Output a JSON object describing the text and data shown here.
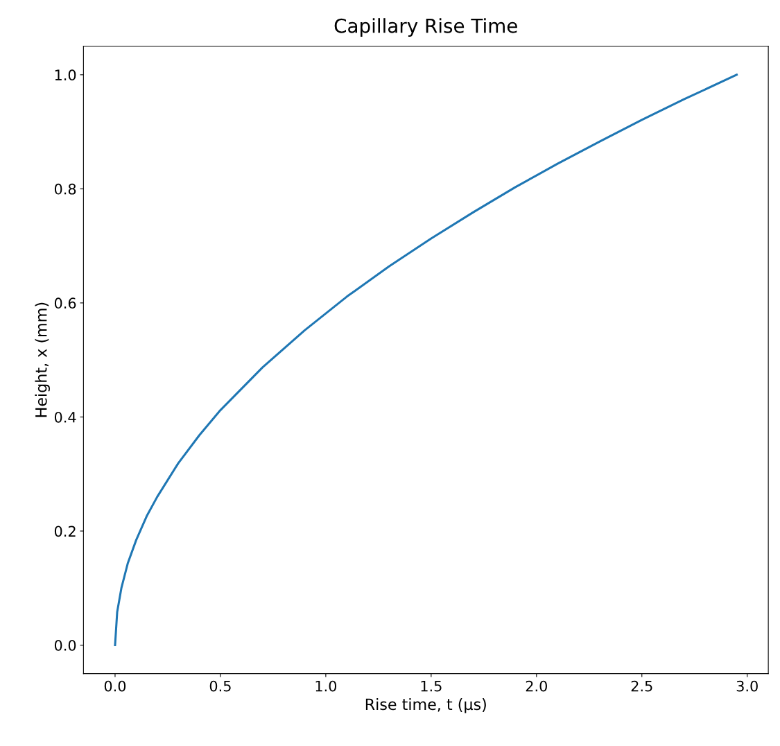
{
  "chart_data": {
    "type": "line",
    "title": "Capillary Rise Time",
    "xlabel": "Rise time, t (µs)",
    "ylabel": "Height, x (mm)",
    "x": [
      0,
      0.01,
      0.03,
      0.06,
      0.1,
      0.15,
      0.2,
      0.3,
      0.4,
      0.5,
      0.7,
      0.9,
      1.1,
      1.3,
      1.5,
      1.7,
      1.9,
      2.1,
      2.3,
      2.5,
      2.7,
      2.95
    ],
    "series": [
      {
        "color": "#1f77b4",
        "values": [
          0,
          0.058,
          0.1,
          0.143,
          0.184,
          0.226,
          0.26,
          0.319,
          0.368,
          0.412,
          0.487,
          0.552,
          0.611,
          0.664,
          0.713,
          0.759,
          0.803,
          0.844,
          0.883,
          0.921,
          0.957,
          1.0
        ]
      }
    ],
    "xlim": [
      -0.15,
      3.1
    ],
    "ylim": [
      -0.05,
      1.05
    ],
    "xticks": [
      {
        "value": 0,
        "label": "0.0"
      },
      0.5,
      {
        "value": 1,
        "label": "1.0"
      },
      1.5,
      {
        "value": 2,
        "label": "2.0"
      },
      2.5,
      {
        "value": 3,
        "label": "3.0"
      }
    ],
    "yticks": [
      {
        "value": 0,
        "label": "0.0"
      },
      0.2,
      0.4,
      0.6,
      0.8,
      {
        "value": 1,
        "label": "1.0"
      }
    ],
    "grid": false,
    "legend": false,
    "marker": "none",
    "line_style": "solid"
  }
}
